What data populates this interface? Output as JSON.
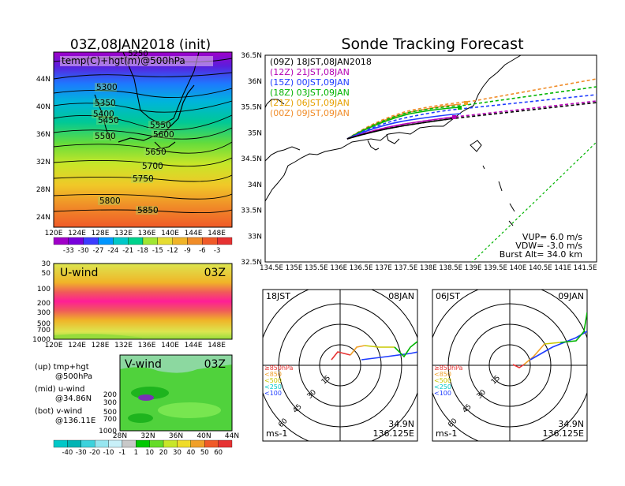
{
  "left": {
    "main_title": "03Z,08JAN2018 (init)",
    "map_label": "temp(C)+hgt(m)@500hPa",
    "top_clip_label": "5250",
    "contours": [
      "5300",
      "5350",
      "5400",
      "5450",
      "5500",
      "5550",
      "5600",
      "5650",
      "5700",
      "5750",
      "5800",
      "5850"
    ],
    "lat_ticks": [
      "44N",
      "40N",
      "36N",
      "32N",
      "28N",
      "24N"
    ],
    "lon_ticks": [
      "120E",
      "124E",
      "128E",
      "132E",
      "136E",
      "140E",
      "144E",
      "148E"
    ],
    "temp_colorbar": {
      "labels": [
        "-33",
        "-30",
        "-27",
        "-24",
        "-21",
        "-18",
        "-15",
        "-12",
        "-9",
        "-6",
        "-3"
      ],
      "colors": [
        "#a000c8",
        "#7800dc",
        "#3c3cff",
        "#0096ff",
        "#00c8c8",
        "#00d28c",
        "#a0e632",
        "#e6dc32",
        "#f0b428",
        "#f08c28",
        "#f05a28",
        "#e63232"
      ]
    },
    "uwind": {
      "title": "U-wind",
      "time": "03Z",
      "levels": [
        "30",
        "50",
        "100",
        "200",
        "300",
        "500",
        "700",
        "1000"
      ]
    },
    "vwind": {
      "title": "V-wind",
      "time": "03Z",
      "levels": [
        "200",
        "300",
        "500",
        "700",
        "1000"
      ],
      "lat_ticks": [
        "28N",
        "32N",
        "36N",
        "40N",
        "44N"
      ]
    },
    "notes": [
      {
        "a": "(up) tmp+hgt",
        "b": "@500hPa"
      },
      {
        "a": "(mid) u-wind",
        "b": "@34.86N"
      },
      {
        "a": "(bot) v-wind",
        "b": "@136.11E"
      }
    ],
    "wind_colorbar": {
      "labels": [
        "-40",
        "-30",
        "-20",
        "-10",
        "-1",
        "1",
        "10",
        "20",
        "30",
        "40",
        "50",
        "60"
      ],
      "colors": [
        "#00c8c8",
        "#00b4b4",
        "#3cd2dc",
        "#96e6f0",
        "#c8f0f8",
        "#c8c8c8",
        "#00c800",
        "#64dc28",
        "#c8e628",
        "#f0dc28",
        "#f0a028",
        "#f05a28",
        "#e63232"
      ]
    }
  },
  "track": {
    "title": "Sonde Tracking Forecast",
    "lat_ticks": [
      "36.5N",
      "36N",
      "35.5N",
      "35N",
      "34.5N",
      "34N",
      "33.5N",
      "33N",
      "32.5N"
    ],
    "lon_ticks": [
      "134.5E",
      "135E",
      "135.5E",
      "136E",
      "136.5E",
      "137E",
      "137.5E",
      "138E",
      "138.5E",
      "139E",
      "139.5E",
      "140E",
      "140.5E",
      "141E",
      "141.5E"
    ],
    "legend": [
      {
        "text": "(09Z)  18JST,08JAN2018",
        "color": "#000000"
      },
      {
        "text": "(12Z)  21JST,08JAN",
        "color": "#b400b4"
      },
      {
        "text": "(15Z)  00JST,09JAN",
        "color": "#1e3cff"
      },
      {
        "text": "(18Z)  03JST,09JAN",
        "color": "#00b400"
      },
      {
        "text": "(21Z)  06JST,09JAN",
        "color": "#e6a000"
      },
      {
        "text": "(00Z)  09JST,09JAN",
        "color": "#f08c28"
      }
    ],
    "info": [
      "VUP=  6.0  m/s",
      "VDW=  -3.0  m/s",
      "Burst Alt=  34.0  km"
    ]
  },
  "hodographs": [
    {
      "time": "18JST",
      "date": "08JAN",
      "lat": "34.9N",
      "lon": "136.125E",
      "unit": "ms-1"
    },
    {
      "time": "06JST",
      "date": "09JAN",
      "lat": "34.9N",
      "lon": "136.125E",
      "unit": "ms-1"
    }
  ],
  "hodo_rings": [
    "15",
    "30",
    "45",
    "60"
  ],
  "hodo_legend": [
    {
      "text": "≥850hPa",
      "color": "#e63232"
    },
    {
      "text": "<850",
      "color": "#f0a028"
    },
    {
      "text": "<500",
      "color": "#c8c800"
    },
    {
      "text": "<250",
      "color": "#00c8c8"
    },
    {
      "text": "<100",
      "color": "#1e3cff"
    }
  ]
}
